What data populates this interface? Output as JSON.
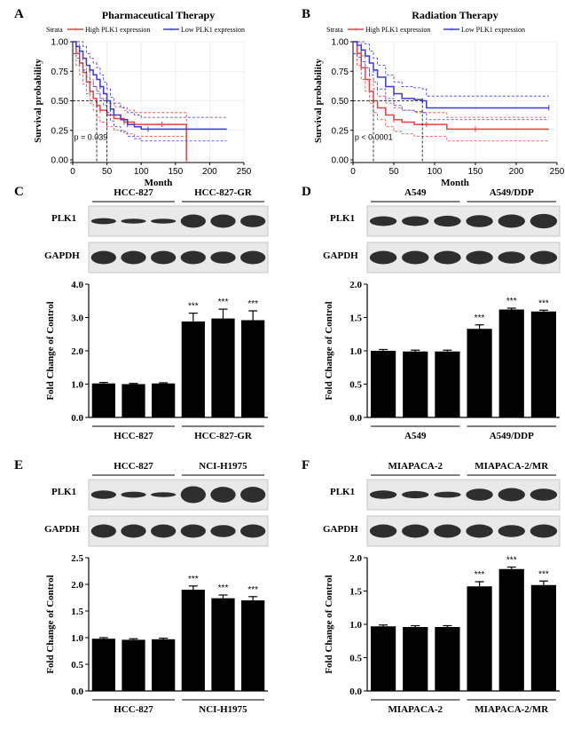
{
  "colors": {
    "high": "#e8413f",
    "low": "#3a3ad6",
    "bar": "#000000"
  },
  "panels": {
    "A": {
      "letter": "A",
      "title": "Pharmaceutical Therapy",
      "legend": {
        "strata": "Strata",
        "high": "High PLK1 expression",
        "low": "Low PLK1 expression"
      },
      "xlabel": "Month",
      "ylabel": "Survival probability",
      "pvalue": "p = 0.039"
    },
    "B": {
      "letter": "B",
      "title": "Radiation Therapy",
      "legend": {
        "strata": "Strata",
        "high": "High PLK1 expression",
        "low": "Low PLK1 expression"
      },
      "xlabel": "Month",
      "ylabel": "Survival probability",
      "pvalue": "p < 0.0001"
    },
    "C": {
      "letter": "C",
      "group1": "HCC-827",
      "group2": "HCC-827-GR",
      "blot1": "PLK1",
      "blot2": "GAPDH",
      "ylabel": "Fold Change of Control",
      "sig": "***"
    },
    "D": {
      "letter": "D",
      "group1": "A549",
      "group2": "A549/DDP",
      "blot1": "PLK1",
      "blot2": "GAPDH",
      "ylabel": "Fold Change of Control",
      "sig": "***"
    },
    "E": {
      "letter": "E",
      "group1": "HCC-827",
      "group2": "NCI-H1975",
      "blot1": "PLK1",
      "blot2": "GAPDH",
      "ylabel": "Fold Change of Control",
      "sig": "***"
    },
    "F": {
      "letter": "F",
      "group1": "MIAPACA-2",
      "group2": "MIAPACA-2/MR",
      "blot1": "PLK1",
      "blot2": "GAPDH",
      "ylabel": "Fold Change of Control",
      "sig": "***"
    }
  },
  "chart_data": [
    {
      "panel": "A",
      "type": "line",
      "title": "Pharmaceutical Therapy",
      "xlabel": "Month",
      "ylabel": "Survival probability",
      "xlim": [
        0,
        250
      ],
      "ylim": [
        0,
        1
      ],
      "xticks": [
        "0",
        "50",
        "100",
        "150",
        "200",
        "250"
      ],
      "yticks": [
        "0.00",
        "0.25",
        "0.50",
        "0.75",
        "1.00"
      ],
      "legend": "top",
      "series": [
        {
          "name": "High PLK1 expression",
          "color": "#e8413f",
          "x": [
            0,
            5,
            10,
            15,
            20,
            25,
            30,
            35,
            40,
            50,
            60,
            75,
            90,
            110,
            130,
            150,
            165,
            166
          ],
          "y": [
            1.0,
            0.9,
            0.82,
            0.74,
            0.66,
            0.58,
            0.52,
            0.46,
            0.42,
            0.38,
            0.35,
            0.32,
            0.3,
            0.3,
            0.3,
            0.3,
            0.3,
            0.0
          ]
        },
        {
          "name": "Low PLK1 expression",
          "color": "#3a3ad6",
          "x": [
            0,
            5,
            10,
            15,
            20,
            25,
            30,
            35,
            40,
            45,
            50,
            55,
            60,
            70,
            80,
            90,
            100,
            110,
            150,
            225
          ],
          "y": [
            1.0,
            0.96,
            0.92,
            0.86,
            0.8,
            0.76,
            0.72,
            0.68,
            0.62,
            0.56,
            0.5,
            0.43,
            0.38,
            0.34,
            0.3,
            0.28,
            0.26,
            0.26,
            0.26,
            0.26
          ]
        }
      ],
      "annotation": "p = 0.039"
    },
    {
      "panel": "B",
      "type": "line",
      "title": "Radiation Therapy",
      "xlabel": "Month",
      "ylabel": "Survival probability",
      "xlim": [
        0,
        250
      ],
      "ylim": [
        0,
        1
      ],
      "xticks": [
        "0",
        "50",
        "100",
        "150",
        "200",
        "250"
      ],
      "yticks": [
        "0.00",
        "0.25",
        "0.50",
        "0.75",
        "1.00"
      ],
      "legend": "top",
      "series": [
        {
          "name": "High PLK1 expression",
          "color": "#e8413f",
          "x": [
            0,
            5,
            10,
            15,
            20,
            25,
            30,
            40,
            50,
            60,
            75,
            90,
            110,
            115,
            150,
            240
          ],
          "y": [
            1.0,
            0.9,
            0.78,
            0.68,
            0.58,
            0.5,
            0.44,
            0.38,
            0.34,
            0.32,
            0.3,
            0.3,
            0.3,
            0.26,
            0.26,
            0.26
          ]
        },
        {
          "name": "Low PLK1 expression",
          "color": "#3a3ad6",
          "x": [
            0,
            5,
            10,
            15,
            20,
            25,
            30,
            40,
            50,
            60,
            75,
            85,
            90,
            150,
            240
          ],
          "y": [
            1.0,
            0.97,
            0.93,
            0.88,
            0.82,
            0.76,
            0.7,
            0.62,
            0.56,
            0.52,
            0.51,
            0.5,
            0.44,
            0.44,
            0.44
          ]
        }
      ],
      "annotation": "p < 0.0001"
    },
    {
      "panel": "C",
      "type": "bar",
      "ylabel": "Fold Change of Control",
      "ylim": [
        0,
        4
      ],
      "yticks": [
        "0.0",
        "1.0",
        "2.0",
        "3.0",
        "4.0"
      ],
      "groups": [
        "HCC-827",
        "HCC-827-GR"
      ],
      "values": [
        1.02,
        1.0,
        1.02,
        2.88,
        2.97,
        2.92
      ],
      "errors": [
        0.03,
        0.02,
        0.02,
        0.25,
        0.28,
        0.28
      ],
      "significance": [
        "",
        "",
        "",
        "***",
        "***",
        "***"
      ]
    },
    {
      "panel": "D",
      "type": "bar",
      "ylabel": "Fold Change of Control",
      "ylim": [
        0,
        2
      ],
      "yticks": [
        "0.0",
        "0.5",
        "1.0",
        "1.5",
        "2.0"
      ],
      "groups": [
        "A549",
        "A549/DDP"
      ],
      "values": [
        1.0,
        0.99,
        0.99,
        1.33,
        1.62,
        1.59
      ],
      "errors": [
        0.02,
        0.02,
        0.02,
        0.06,
        0.02,
        0.02
      ],
      "significance": [
        "",
        "",
        "",
        "***",
        "***",
        "***"
      ]
    },
    {
      "panel": "E",
      "type": "bar",
      "ylabel": "Fold Change of Control",
      "ylim": [
        0,
        2.5
      ],
      "yticks": [
        "0.0",
        "0.5",
        "1.0",
        "1.5",
        "2.0",
        "2.5"
      ],
      "groups": [
        "HCC-827",
        "NCI-H1975"
      ],
      "values": [
        0.98,
        0.96,
        0.97,
        1.9,
        1.74,
        1.7
      ],
      "errors": [
        0.02,
        0.02,
        0.02,
        0.07,
        0.06,
        0.07
      ],
      "significance": [
        "",
        "",
        "",
        "***",
        "***",
        "***"
      ]
    },
    {
      "panel": "F",
      "type": "bar",
      "ylabel": "Fold Change of Control",
      "ylim": [
        0,
        2
      ],
      "yticks": [
        "0.0",
        "0.5",
        "1.0",
        "1.5",
        "2.0"
      ],
      "groups": [
        "MIAPACA-2",
        "MIAPACA-2/MR"
      ],
      "values": [
        0.97,
        0.96,
        0.96,
        1.57,
        1.83,
        1.59
      ],
      "errors": [
        0.02,
        0.02,
        0.02,
        0.07,
        0.03,
        0.06
      ],
      "significance": [
        "",
        "",
        "",
        "***",
        "***",
        "***"
      ]
    }
  ]
}
